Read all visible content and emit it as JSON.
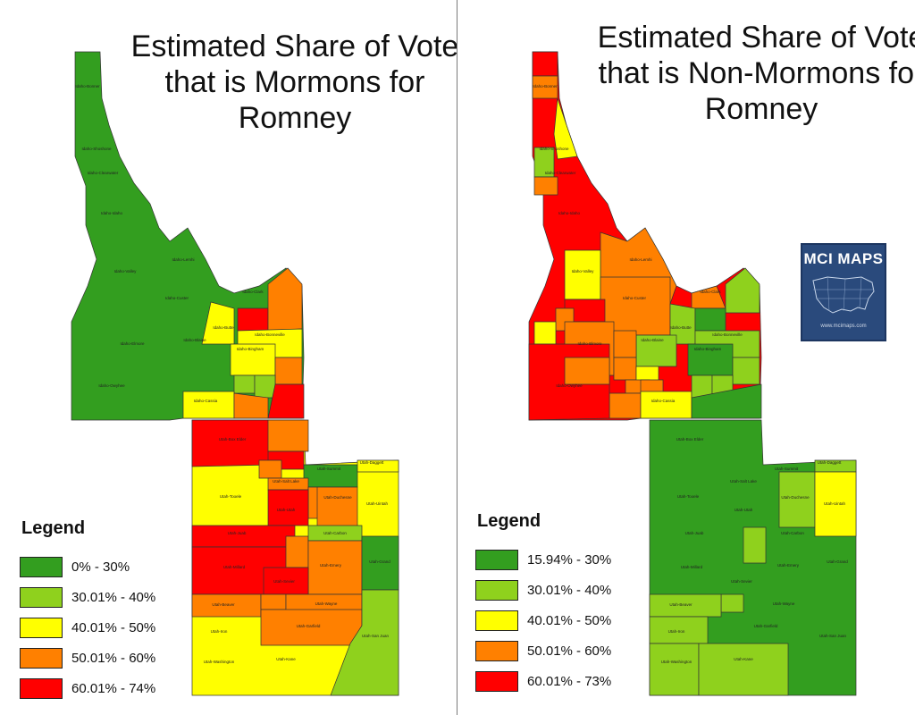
{
  "left_map": {
    "title": "Estimated Share of Vote that is Mormons for Romney",
    "legend_title": "Legend",
    "legend": [
      {
        "label": "0% - 30%",
        "color": "#339e1f"
      },
      {
        "label": "30.01% - 40%",
        "color": "#8fd11d"
      },
      {
        "label": "40.01% - 50%",
        "color": "#ffff00"
      },
      {
        "label": "50.01% - 60%",
        "color": "#ff8000"
      },
      {
        "label": "60.01% - 74%",
        "color": "#ff0000"
      }
    ],
    "county_labels": [
      "Idaho-Bonner",
      "Idaho-Shoshone",
      "Idaho-Clearwater",
      "Idaho-Idaho",
      "Idaho-Valley",
      "Idaho-Lemhi",
      "Idaho-Custer",
      "Idaho-Clark",
      "Idaho-Butte",
      "Idaho-Bonneville",
      "Idaho-Bingham",
      "Idaho-Blaine",
      "Idaho-Elmore",
      "Idaho-Owyhee",
      "Idaho-Cassia",
      "Utah-Box Elder",
      "Utah-Tooele",
      "Utah-Juab",
      "Utah-Millard",
      "Utah-Beaver",
      "Utah-Iron",
      "Utah-Washington",
      "Utah-Kane",
      "Utah-Garfield",
      "Utah-Wayne",
      "Utah-Emery",
      "Utah-Grand",
      "Utah-San Juan",
      "Utah-Uintah",
      "Utah-Duchesne",
      "Utah-Summit",
      "Utah-Daggett",
      "Utah-Carbon",
      "Utah-Salt Lake",
      "Utah-Utah",
      "Utah-Sevier"
    ]
  },
  "right_map": {
    "title": "Estimated Share of Vote that is Non-Mormons for Romney",
    "legend_title": "Legend",
    "legend": [
      {
        "label": "15.94% - 30%",
        "color": "#339e1f"
      },
      {
        "label": "30.01% - 40%",
        "color": "#8fd11d"
      },
      {
        "label": "40.01% - 50%",
        "color": "#ffff00"
      },
      {
        "label": "50.01% - 60%",
        "color": "#ff8000"
      },
      {
        "label": "60.01% - 73%",
        "color": "#ff0000"
      }
    ],
    "county_labels": [
      "Idaho-Bonner",
      "Idaho-Shoshone",
      "Idaho-Clearwater",
      "Idaho-Idaho",
      "Idaho-Valley",
      "Idaho-Lemhi",
      "Idaho-Custer",
      "Idaho-Clark",
      "Idaho-Butte",
      "Idaho-Bonneville",
      "Idaho-Bingham",
      "Idaho-Blaine",
      "Idaho-Elmore",
      "Idaho-Owyhee",
      "Idaho-Cassia",
      "Utah-Box Elder",
      "Utah-Tooele",
      "Utah-Juab",
      "Utah-Millard",
      "Utah-Beaver",
      "Utah-Iron",
      "Utah-Washington",
      "Utah-Kane",
      "Utah-Garfield",
      "Utah-Wayne",
      "Utah-Emery",
      "Utah-Grand",
      "Utah-San Juan",
      "Utah-Uintah",
      "Utah-Duchesne",
      "Utah-Summit",
      "Utah-Daggett",
      "Utah-Carbon",
      "Utah-Salt Lake",
      "Utah-Utah",
      "Utah-Sevier"
    ]
  },
  "logo": {
    "text": "MCI MAPS",
    "url": "www.mcimaps.com"
  }
}
